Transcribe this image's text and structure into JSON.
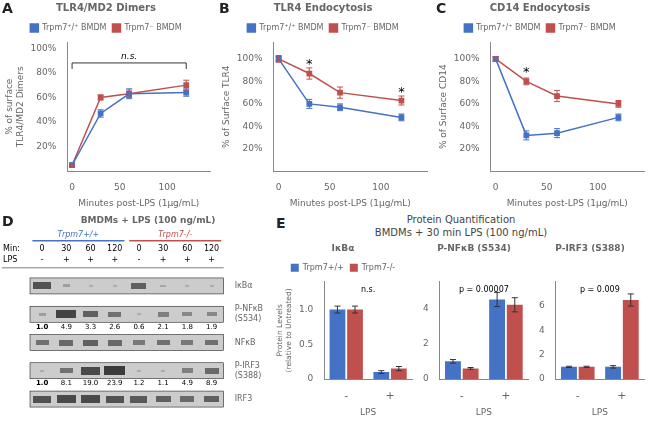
{
  "chart_data": [
    {
      "type": "line",
      "panel": "A",
      "title": "TLR4/MD2 Dimers",
      "xlabel": "Minutes post-LPS (1μg/mL)",
      "ylabel": "% of surface\nTLR4/MD2 Dimers",
      "x": [
        0,
        30,
        60,
        120
      ],
      "xlim": [
        -5,
        145
      ],
      "xticks": [
        0,
        50,
        100
      ],
      "ylim": [
        0,
        105
      ],
      "yticks": [
        {
          "value": 0,
          "label": ""
        },
        {
          "value": 20,
          "label": "20%"
        },
        {
          "value": 40,
          "label": "40%"
        },
        {
          "value": 60,
          "label": "60%"
        },
        {
          "value": 80,
          "label": "80%"
        },
        {
          "value": 100,
          "label": "100%"
        }
      ],
      "grid": false,
      "legend": "top",
      "marker": "square",
      "series": [
        {
          "name": "Trpm7⁺/⁺ BMDM",
          "color": "#4472C4",
          "values": [
            5,
            47,
            63,
            64
          ],
          "errors": [
            1,
            3,
            4,
            3
          ]
        },
        {
          "name": "Trpm7⁻ BMDM",
          "color": "#C0504D",
          "values": [
            5,
            60,
            63,
            70
          ],
          "errors": [
            1,
            2,
            3,
            4
          ]
        }
      ],
      "annotations": [
        {
          "text": "n.s.",
          "x": [
            0,
            120
          ],
          "y": 88
        }
      ]
    },
    {
      "type": "line",
      "panel": "B",
      "title": "TLR4 Endocytosis",
      "xlabel": "Minutes post-LPS (1μg/mL)",
      "ylabel": "% of Surface TLR4",
      "x": [
        0,
        30,
        60,
        120
      ],
      "xlim": [
        -5,
        145
      ],
      "xticks": [
        0,
        50,
        100
      ],
      "ylim": [
        0,
        115
      ],
      "yticks": [
        {
          "value": 0,
          "label": ""
        },
        {
          "value": 20,
          "label": "20%"
        },
        {
          "value": 40,
          "label": "40%"
        },
        {
          "value": 60,
          "label": "60%"
        },
        {
          "value": 80,
          "label": "80%"
        },
        {
          "value": 100,
          "label": "100%"
        }
      ],
      "grid": false,
      "legend": "top",
      "marker": "square",
      "series": [
        {
          "name": "Trpm7⁺/⁺ BMDM",
          "color": "#4472C4",
          "values": [
            100,
            60,
            57,
            48
          ],
          "errors": [
            2,
            4,
            3,
            3
          ]
        },
        {
          "name": "Trpm7⁻ BMDM",
          "color": "#C0504D",
          "values": [
            100,
            87,
            70,
            63
          ],
          "errors": [
            3,
            5,
            5,
            4
          ]
        }
      ],
      "annotations": [
        {
          "text": "*",
          "x": 30,
          "y": 93
        },
        {
          "text": "*",
          "x": 120,
          "y": 68
        }
      ]
    },
    {
      "type": "line",
      "panel": "C",
      "title": "CD14 Endocytosis",
      "xlabel": "Minutes post-LPS (1μg/mL)",
      "ylabel": "% of Surface CD14",
      "x": [
        0,
        30,
        60,
        120
      ],
      "xlim": [
        -5,
        145
      ],
      "xticks": [
        0,
        50,
        100
      ],
      "ylim": [
        0,
        115
      ],
      "yticks": [
        {
          "value": 0,
          "label": ""
        },
        {
          "value": 20,
          "label": "20%"
        },
        {
          "value": 40,
          "label": "40%"
        },
        {
          "value": 60,
          "label": "60%"
        },
        {
          "value": 80,
          "label": "80%"
        },
        {
          "value": 100,
          "label": "100%"
        }
      ],
      "grid": false,
      "legend": "top",
      "marker": "square",
      "series": [
        {
          "name": "Trpm7⁺/⁺ BMDM",
          "color": "#4472C4",
          "values": [
            100,
            32,
            34,
            48
          ],
          "errors": [
            2,
            4,
            4,
            3
          ]
        },
        {
          "name": "Trpm7⁻ BMDM",
          "color": "#C0504D",
          "values": [
            100,
            80,
            67,
            60
          ],
          "errors": [
            2,
            3,
            5,
            3
          ]
        }
      ],
      "annotations": [
        {
          "text": "*",
          "x": 30,
          "y": 86
        }
      ]
    },
    {
      "type": "blot",
      "panel": "D",
      "title": "BMDMs + LPS (100 ng/mL)",
      "groups": [
        {
          "name": "Trpm7+/+",
          "color": "#4472C4"
        },
        {
          "name": "Trpm7-/-",
          "color": "#C0504D"
        }
      ],
      "lane_rows": [
        {
          "name": "Min:",
          "values": [
            "0",
            "30",
            "60",
            "120",
            "0",
            "30",
            "60",
            "120"
          ]
        },
        {
          "name": "LPS",
          "values": [
            "-",
            "+",
            "+",
            "+",
            "-",
            "+",
            "+",
            "+"
          ]
        }
      ],
      "rows": [
        {
          "name": "IκBα",
          "values": [
            0.8,
            0.3,
            0.2,
            0.2,
            0.7,
            0.25,
            0.2,
            0.2
          ]
        },
        {
          "name": "P-NFκB",
          "name2": "(S534)",
          "values": [
            0.3,
            0.9,
            0.7,
            0.6,
            0.2,
            0.5,
            0.45,
            0.45
          ],
          "numbers": [
            1.0,
            4.9,
            3.3,
            2.6,
            0.6,
            2.1,
            1.8,
            1.9
          ],
          "number_labels": [
            "1.0",
            "4.9",
            "3.3",
            "2.6",
            "0.6",
            "2.1",
            "1.8",
            "1.9"
          ]
        },
        {
          "name": "NFκB",
          "values": [
            0.6,
            0.65,
            0.7,
            0.65,
            0.55,
            0.6,
            0.55,
            0.6
          ]
        },
        {
          "name": "P-IRF3",
          "name2": "(S388)",
          "values": [
            0.2,
            0.6,
            0.85,
            0.95,
            0.2,
            0.2,
            0.5,
            0.65
          ],
          "numbers": [
            1.0,
            8.1,
            19.0,
            23.9,
            1.2,
            1.1,
            4.9,
            8.9
          ],
          "number_labels": [
            "1.0",
            "8.1",
            "19.0",
            "23.9",
            "1.2",
            "1.1",
            "4.9",
            "8.9"
          ]
        },
        {
          "name": "IRF3",
          "values": [
            0.8,
            0.85,
            0.85,
            0.8,
            0.75,
            0.7,
            0.65,
            0.7
          ]
        }
      ]
    },
    {
      "type": "bar",
      "panel": "E",
      "title": "Protein Quantification\nBMDMs + 30 min LPS (100 ng/mL)",
      "charts": [
        {
          "type": "bar",
          "title": "IκBα",
          "categories": [
            "-",
            "+"
          ],
          "xlabel": "LPS",
          "ylabel": "Protein Levels\n(relative to Untreated)",
          "ylim": [
            0,
            1.4
          ],
          "yticks": [
            0,
            0.5,
            {
              "value": 1.0,
              "label": "1.0"
            }
          ],
          "grid": false,
          "legend": "top",
          "series": [
            {
              "name": "Trpm7+/+",
              "color": "#4472C4",
              "values": [
                1.0,
                0.1
              ],
              "errors": [
                0.05,
                0.02
              ]
            },
            {
              "name": "Trpm7-/-",
              "color": "#C0504D",
              "values": [
                1.0,
                0.15
              ],
              "errors": [
                0.05,
                0.03
              ]
            }
          ],
          "annotations": [
            {
              "text": "n.s."
            }
          ]
        },
        {
          "type": "bar",
          "title": "P-NFκB (S534)",
          "categories": [
            "-",
            "+"
          ],
          "xlabel": "LPS",
          "ylim": [
            0,
            5.5
          ],
          "yticks": [
            0,
            2,
            4
          ],
          "grid": false,
          "series": [
            {
              "name": "Trpm7+/+",
              "color": "#4472C4",
              "values": [
                1.0,
                4.5
              ],
              "errors": [
                0.1,
                0.4
              ]
            },
            {
              "name": "Trpm7-/-",
              "color": "#C0504D",
              "values": [
                0.6,
                4.2
              ],
              "errors": [
                0.05,
                0.4
              ]
            }
          ],
          "annotations": [
            {
              "text": "p = 0.00007"
            }
          ]
        },
        {
          "type": "bar",
          "title": "P-IRF3 (S388)",
          "categories": [
            "-",
            "+"
          ],
          "xlabel": "LPS",
          "ylim": [
            0,
            8.0
          ],
          "yticks": [
            0,
            2,
            4,
            6
          ],
          "grid": false,
          "series": [
            {
              "name": "Trpm7+/+",
              "color": "#4472C4",
              "values": [
                1.0,
                1.0
              ],
              "errors": [
                0.05,
                0.1
              ]
            },
            {
              "name": "Trpm7-/-",
              "color": "#C0504D",
              "values": [
                1.0,
                6.5
              ],
              "errors": [
                0.05,
                0.5
              ]
            }
          ],
          "annotations": [
            {
              "text": "p = 0.009"
            }
          ]
        }
      ]
    }
  ]
}
